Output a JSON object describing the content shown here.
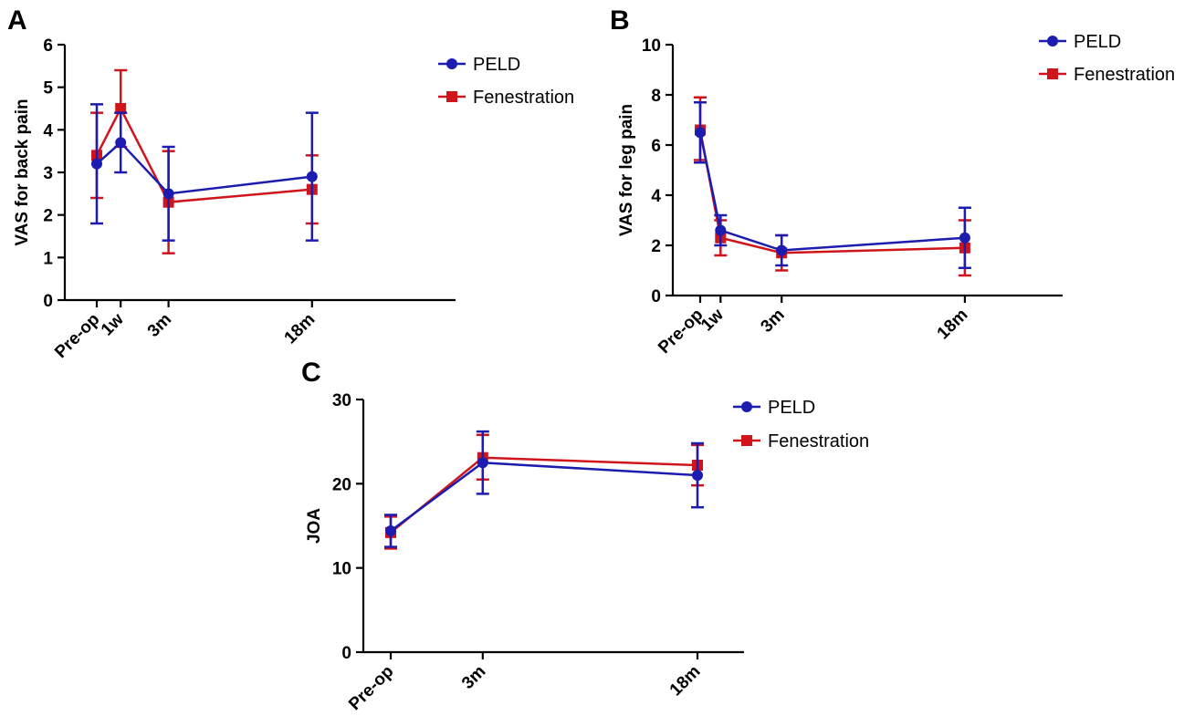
{
  "figure": {
    "panels": [
      "A",
      "B",
      "C"
    ]
  },
  "chart_data": [
    {
      "panel": "A",
      "type": "line",
      "ylabel": "VAS for back pain",
      "xlabel": "",
      "ylim": [
        0,
        6
      ],
      "yticks": [
        "0",
        "1",
        "2",
        "3",
        "4",
        "5",
        "6"
      ],
      "x_categories": [
        "Pre-op",
        "1w",
        "3m",
        "18m"
      ],
      "x_positions": [
        0,
        1,
        3,
        9
      ],
      "xlim": [
        0,
        14
      ],
      "grid": false,
      "legend_position": "top-right",
      "series": [
        {
          "name": "PELD",
          "color": "#1c1cb0",
          "marker": "circle",
          "values": [
            3.2,
            3.7,
            2.5,
            2.9
          ],
          "err_low": [
            1.8,
            3.0,
            1.4,
            1.4
          ],
          "err_high": [
            4.6,
            4.4,
            3.6,
            4.4
          ]
        },
        {
          "name": "Fenestration",
          "color": "#d0141c",
          "marker": "square",
          "values": [
            3.4,
            4.5,
            2.3,
            2.6
          ],
          "err_low": [
            2.4,
            3.6,
            1.1,
            1.8
          ],
          "err_high": [
            4.4,
            5.4,
            3.5,
            3.4
          ]
        }
      ]
    },
    {
      "panel": "B",
      "type": "line",
      "ylabel": "VAS for leg pain",
      "xlabel": "",
      "ylim": [
        0,
        10
      ],
      "yticks": [
        "0",
        "2",
        "4",
        "6",
        "8",
        "10"
      ],
      "x_categories": [
        "Pre-op",
        "1w",
        "3m",
        "18m"
      ],
      "x_positions": [
        0,
        1,
        4,
        13
      ],
      "xlim": [
        0,
        17
      ],
      "grid": false,
      "legend_position": "top-right",
      "series": [
        {
          "name": "PELD",
          "color": "#1c1cb0",
          "marker": "circle",
          "values": [
            6.5,
            2.6,
            1.8,
            2.3
          ],
          "err_low": [
            5.3,
            2.0,
            1.2,
            1.1
          ],
          "err_high": [
            7.7,
            3.2,
            2.4,
            3.5
          ]
        },
        {
          "name": "Fenestration",
          "color": "#d0141c",
          "marker": "square",
          "values": [
            6.6,
            2.3,
            1.7,
            1.9
          ],
          "err_low": [
            5.4,
            1.6,
            1.0,
            0.8
          ],
          "err_high": [
            7.9,
            3.0,
            2.4,
            3.0
          ]
        }
      ]
    },
    {
      "panel": "C",
      "type": "line",
      "ylabel": "JOA",
      "xlabel": "",
      "ylim": [
        0,
        30
      ],
      "yticks": [
        "0",
        "10",
        "20",
        "30"
      ],
      "x_categories": [
        "Pre-op",
        "3m",
        "18m"
      ],
      "x_positions": [
        0,
        3,
        10
      ],
      "xlim": [
        0,
        11.8
      ],
      "grid": false,
      "legend_position": "top-right",
      "series": [
        {
          "name": "PELD",
          "color": "#1c1cb0",
          "marker": "circle",
          "values": [
            14.4,
            22.5,
            21.0
          ],
          "err_low": [
            12.5,
            18.8,
            17.2
          ],
          "err_high": [
            16.3,
            26.2,
            24.8
          ]
        },
        {
          "name": "Fenestration",
          "color": "#d0141c",
          "marker": "square",
          "values": [
            14.2,
            23.1,
            22.2
          ],
          "err_low": [
            12.3,
            20.5,
            19.8
          ],
          "err_high": [
            16.1,
            25.8,
            24.6
          ]
        }
      ]
    }
  ]
}
